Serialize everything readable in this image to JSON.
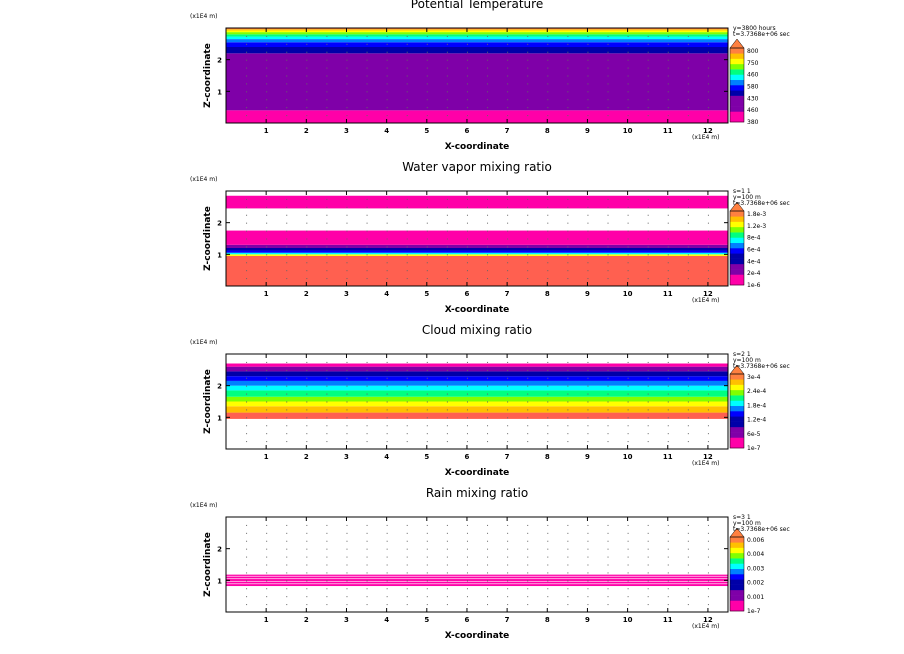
{
  "chart_data": [
    {
      "type": "heatmap",
      "title": "Potential Temperature",
      "xlabel": "X-coordinate",
      "ylabel": "Z-coordinate",
      "x_unit": "(x1E4 m)",
      "y_unit": "(x1E4 m)",
      "xlim": [
        0,
        12.5
      ],
      "ylim": [
        0,
        3
      ],
      "x_ticks": [
        "1",
        "2",
        "3",
        "4",
        "5",
        "6",
        "7",
        "8",
        "9",
        "10",
        "11",
        "12"
      ],
      "y_ticks": [
        "1",
        "2"
      ],
      "info": [
        "y=3800 hours",
        "t=3.7368e+06 sec"
      ],
      "legend_labels": [
        "800",
        "750",
        "460",
        "580",
        "430",
        "460",
        "380"
      ],
      "colors": [
        "#ff00a8",
        "#ff00a8",
        "#7f00a8",
        "#7f00a8",
        "#7f00a8",
        "#0000a8",
        "#0000ff",
        "#0080ff",
        "#00ffff",
        "#00ff80",
        "#80ff00",
        "#ffff00",
        "#ffc000",
        "#ff8040"
      ],
      "bands": [
        {
          "z0": 0.0,
          "z1": 0.4,
          "color": "#ff00a8"
        },
        {
          "z0": 0.4,
          "z1": 2.2,
          "color": "#7f00a8"
        },
        {
          "z0": 2.2,
          "z1": 2.4,
          "color": "#0000a8"
        },
        {
          "z0": 2.4,
          "z1": 2.55,
          "color": "#0000ff"
        },
        {
          "z0": 2.55,
          "z1": 2.65,
          "color": "#0080ff"
        },
        {
          "z0": 2.65,
          "z1": 2.73,
          "color": "#00ffff"
        },
        {
          "z0": 2.73,
          "z1": 2.8,
          "color": "#00ff80"
        },
        {
          "z0": 2.8,
          "z1": 2.87,
          "color": "#80ff00"
        },
        {
          "z0": 2.87,
          "z1": 2.92,
          "color": "#ffff00"
        },
        {
          "z0": 2.92,
          "z1": 2.96,
          "color": "#ffc000"
        },
        {
          "z0": 2.96,
          "z1": 3.0,
          "color": "#ff8040"
        }
      ]
    },
    {
      "type": "heatmap",
      "title": "Water vapor mixing ratio",
      "xlabel": "X-coordinate",
      "ylabel": "Z-coordinate",
      "x_unit": "(x1E4 m)",
      "y_unit": "(x1E4 m)",
      "xlim": [
        0,
        12.5
      ],
      "ylim": [
        0,
        3
      ],
      "x_ticks": [
        "1",
        "2",
        "3",
        "4",
        "5",
        "6",
        "7",
        "8",
        "9",
        "10",
        "11",
        "12"
      ],
      "y_ticks": [
        "1",
        "2"
      ],
      "info": [
        "s=1 1",
        "y=100 m",
        "t=3.7368e+06 sec"
      ],
      "legend_labels": [
        "1.8e-3",
        "1.2e-3",
        "8e-4",
        "6e-4",
        "4e-4",
        "2e-4",
        "1e-6"
      ],
      "colors": [
        "#ff00a8",
        "#ff00a8",
        "#7f00a8",
        "#7f00a8",
        "#0000a8",
        "#0000a8",
        "#0000ff",
        "#0080ff",
        "#00ffff",
        "#00ff80",
        "#80ff00",
        "#ffff00",
        "#ffc000",
        "#ff8040"
      ],
      "bands": [
        {
          "z0": 0.0,
          "z1": 0.95,
          "color": "#ff6050"
        },
        {
          "z0": 0.95,
          "z1": 1.0,
          "color": "#ffff00"
        },
        {
          "z0": 1.0,
          "z1": 1.05,
          "color": "#00ffff"
        },
        {
          "z0": 1.05,
          "z1": 1.12,
          "color": "#0000ff"
        },
        {
          "z0": 1.12,
          "z1": 1.2,
          "color": "#0000a8"
        },
        {
          "z0": 1.2,
          "z1": 1.3,
          "color": "#7f00a8"
        },
        {
          "z0": 1.3,
          "z1": 1.75,
          "color": "#ff00a8"
        },
        {
          "z0": 2.45,
          "z1": 2.85,
          "color": "#ff00a8"
        }
      ]
    },
    {
      "type": "heatmap",
      "title": "Cloud mixing ratio",
      "xlabel": "X-coordinate",
      "ylabel": "Z-coordinate",
      "x_unit": "(x1E4 m)",
      "y_unit": "(x1E4 m)",
      "xlim": [
        0,
        12.5
      ],
      "ylim": [
        0,
        3
      ],
      "x_ticks": [
        "1",
        "2",
        "3",
        "4",
        "5",
        "6",
        "7",
        "8",
        "9",
        "10",
        "11",
        "12"
      ],
      "y_ticks": [
        "1",
        "2"
      ],
      "info": [
        "s=2 1",
        "y=100 m",
        "t=3.7368e+06 sec"
      ],
      "legend_labels": [
        "3e-4",
        "2.4e-4",
        "1.8e-4",
        "1.2e-4",
        "6e-5",
        "1e-7"
      ],
      "colors": [
        "#ff00a8",
        "#ff00a8",
        "#7f00a8",
        "#7f00a8",
        "#0000a8",
        "#0000a8",
        "#0000ff",
        "#0080ff",
        "#00ffff",
        "#00ff80",
        "#80ff00",
        "#ffff00",
        "#ffc000",
        "#ff8040"
      ],
      "bands": [
        {
          "z0": 0.95,
          "z1": 1.15,
          "color": "#ff6050"
        },
        {
          "z0": 1.15,
          "z1": 1.35,
          "color": "#ffc000"
        },
        {
          "z0": 1.35,
          "z1": 1.5,
          "color": "#ffff00"
        },
        {
          "z0": 1.5,
          "z1": 1.65,
          "color": "#80ff00"
        },
        {
          "z0": 1.65,
          "z1": 1.85,
          "color": "#00ff80"
        },
        {
          "z0": 1.85,
          "z1": 2.0,
          "color": "#00ffff"
        },
        {
          "z0": 2.0,
          "z1": 2.15,
          "color": "#0080ff"
        },
        {
          "z0": 2.15,
          "z1": 2.3,
          "color": "#0000ff"
        },
        {
          "z0": 2.3,
          "z1": 2.45,
          "color": "#0000a8"
        },
        {
          "z0": 2.45,
          "z1": 2.6,
          "color": "#7f00a8"
        },
        {
          "z0": 2.6,
          "z1": 2.7,
          "color": "#ff00a8"
        }
      ]
    },
    {
      "type": "heatmap",
      "title": "Rain mixing ratio",
      "xlabel": "X-coordinate",
      "ylabel": "Z-coordinate",
      "x_unit": "(x1E4 m)",
      "y_unit": "(x1E4 m)",
      "xlim": [
        0,
        12.5
      ],
      "ylim": [
        0,
        3
      ],
      "x_ticks": [
        "1",
        "2",
        "3",
        "4",
        "5",
        "6",
        "7",
        "8",
        "9",
        "10",
        "11",
        "12"
      ],
      "y_ticks": [
        "1",
        "2"
      ],
      "info": [
        "s=3 1",
        "y=100 m",
        "t=3.7368e+06 sec"
      ],
      "legend_labels": [
        "0.006",
        "0.004",
        "0.003",
        "0.002",
        "0.001",
        "1e-7"
      ],
      "colors": [
        "#ff00a8",
        "#ff00a8",
        "#7f00a8",
        "#7f00a8",
        "#0000a8",
        "#0000a8",
        "#0000ff",
        "#0080ff",
        "#00ffff",
        "#00ff80",
        "#80ff00",
        "#ffff00",
        "#ffc000",
        "#ff8040"
      ],
      "bands": [
        {
          "z0": 0.82,
          "z1": 0.88,
          "color": "#ff00a8"
        },
        {
          "z0": 0.9,
          "z1": 0.96,
          "color": "#ff00a8"
        },
        {
          "z0": 0.98,
          "z1": 1.04,
          "color": "#ff00a8"
        },
        {
          "z0": 1.06,
          "z1": 1.12,
          "color": "#ff00a8"
        },
        {
          "z0": 1.14,
          "z1": 1.18,
          "color": "#ff00a8"
        }
      ]
    }
  ]
}
